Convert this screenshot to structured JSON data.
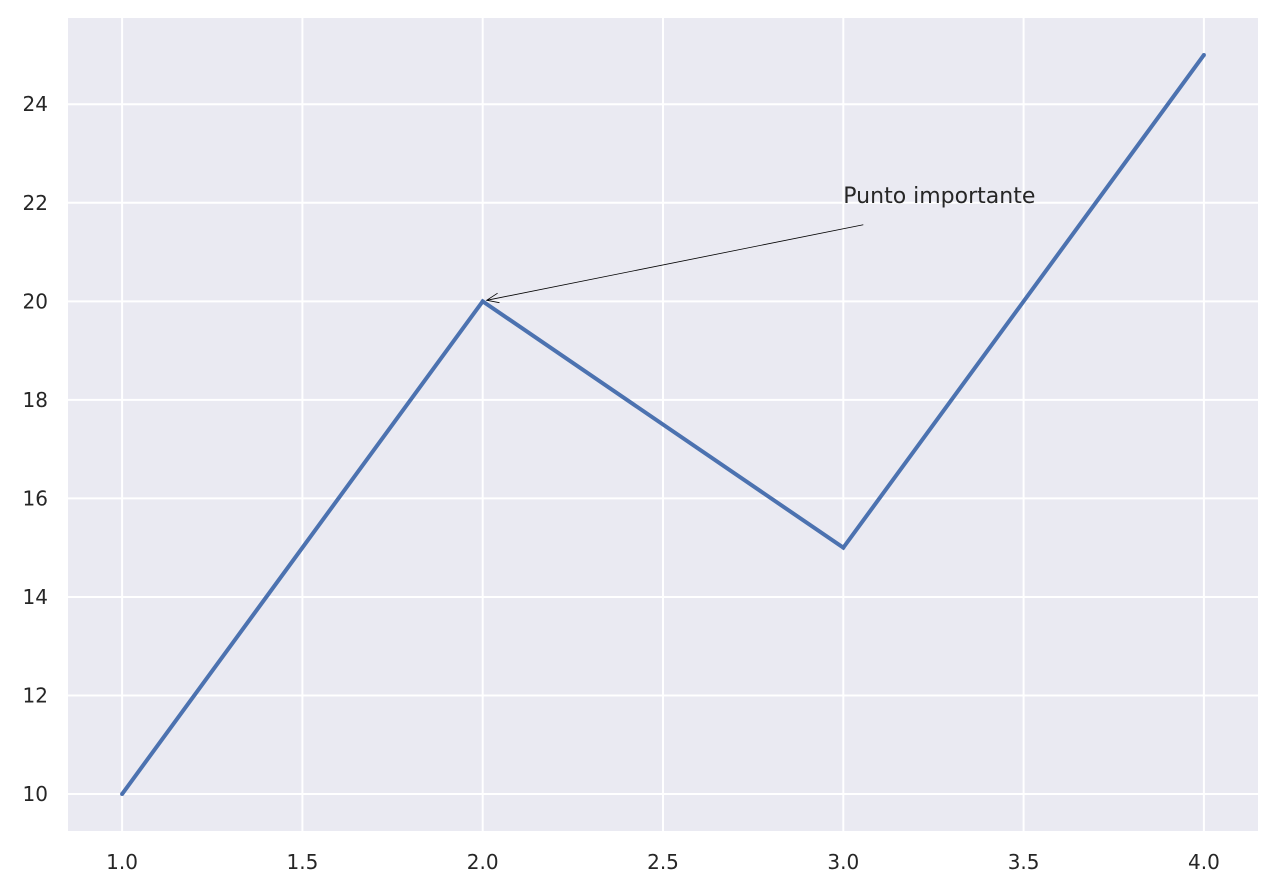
{
  "chart_data": {
    "type": "line",
    "title": "",
    "xlabel": "",
    "ylabel": "",
    "x": [
      1,
      2,
      3,
      4
    ],
    "series": [
      {
        "values": [
          10,
          20,
          15,
          25
        ]
      }
    ],
    "xlim": [
      0.85,
      4.15
    ],
    "ylim": [
      9.25,
      25.75
    ],
    "x_ticks": [
      1.0,
      1.5,
      2.0,
      2.5,
      3.0,
      3.5,
      4.0
    ],
    "x_tick_labels": [
      "1.0",
      "1.5",
      "2.0",
      "2.5",
      "3.0",
      "3.5",
      "4.0"
    ],
    "y_ticks": [
      10,
      12,
      14,
      16,
      18,
      20,
      22,
      24
    ],
    "y_tick_labels": [
      "10",
      "12",
      "14",
      "16",
      "18",
      "20",
      "22",
      "24"
    ],
    "grid": true,
    "legend": "none",
    "annotation": {
      "text": "Punto importante",
      "xy": [
        2,
        20
      ],
      "xytext": [
        3,
        22
      ]
    },
    "colors": {
      "background": "#EAEAF2",
      "grid": "#FFFFFF",
      "line": "#4C72B0",
      "text": "#262626",
      "arrow": "#000000"
    }
  }
}
